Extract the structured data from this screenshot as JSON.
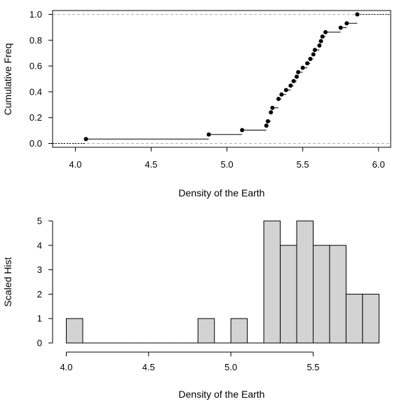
{
  "chart_data": [
    {
      "type": "scatter",
      "subtype": "empirical-cdf-step",
      "xlabel": "Density of the Earth",
      "ylabel": "Cumulative Freq",
      "xlim": [
        3.85,
        6.08
      ],
      "ylim": [
        -0.03,
        1.03
      ],
      "x_ticks": [
        "4.0",
        "4.5",
        "5.0",
        "5.5",
        "6.0"
      ],
      "x_tick_values": [
        4.0,
        4.5,
        5.0,
        5.5,
        6.0
      ],
      "y_ticks": [
        "0.0",
        "0.2",
        "0.4",
        "0.6",
        "0.8",
        "1.0"
      ],
      "y_tick_values": [
        0.0,
        0.2,
        0.4,
        0.6,
        0.8,
        1.0
      ],
      "reference_lines": [
        0,
        1
      ],
      "points": [
        {
          "x": 4.07,
          "y": 0.034
        },
        {
          "x": 4.88,
          "y": 0.069
        },
        {
          "x": 5.1,
          "y": 0.103
        },
        {
          "x": 5.26,
          "y": 0.138
        },
        {
          "x": 5.27,
          "y": 0.172
        },
        {
          "x": 5.29,
          "y": 0.241
        },
        {
          "x": 5.3,
          "y": 0.276
        },
        {
          "x": 5.34,
          "y": 0.345
        },
        {
          "x": 5.36,
          "y": 0.379
        },
        {
          "x": 5.39,
          "y": 0.414
        },
        {
          "x": 5.42,
          "y": 0.448
        },
        {
          "x": 5.44,
          "y": 0.483
        },
        {
          "x": 5.46,
          "y": 0.517
        },
        {
          "x": 5.47,
          "y": 0.552
        },
        {
          "x": 5.5,
          "y": 0.586
        },
        {
          "x": 5.53,
          "y": 0.621
        },
        {
          "x": 5.55,
          "y": 0.655
        },
        {
          "x": 5.57,
          "y": 0.69
        },
        {
          "x": 5.58,
          "y": 0.724
        },
        {
          "x": 5.61,
          "y": 0.759
        },
        {
          "x": 5.62,
          "y": 0.793
        },
        {
          "x": 5.63,
          "y": 0.828
        },
        {
          "x": 5.65,
          "y": 0.862
        },
        {
          "x": 5.75,
          "y": 0.897
        },
        {
          "x": 5.79,
          "y": 0.931
        },
        {
          "x": 5.86,
          "y": 1.0
        }
      ]
    },
    {
      "type": "bar",
      "subtype": "histogram",
      "xlabel": "Density of the Earth",
      "ylabel": "Scaled Hist",
      "xlim": [
        3.92,
        5.95
      ],
      "ylim": [
        0,
        5
      ],
      "x_ticks": [
        "4.0",
        "4.5",
        "5.0",
        "5.5"
      ],
      "x_tick_values": [
        4.0,
        4.5,
        5.0,
        5.5
      ],
      "y_ticks": [
        "0",
        "1",
        "2",
        "3",
        "4",
        "5"
      ],
      "y_tick_values": [
        0,
        1,
        2,
        3,
        4,
        5
      ],
      "bin_edges": [
        4.0,
        4.1,
        4.2,
        4.3,
        4.4,
        4.5,
        4.6,
        4.7,
        4.8,
        4.9,
        5.0,
        5.1,
        5.2,
        5.3,
        5.4,
        5.5,
        5.6,
        5.7,
        5.8,
        5.9
      ],
      "values": [
        1,
        0,
        0,
        0,
        0,
        0,
        0,
        0,
        1,
        0,
        1,
        0,
        5,
        4,
        5,
        4,
        4,
        2,
        2
      ]
    }
  ]
}
